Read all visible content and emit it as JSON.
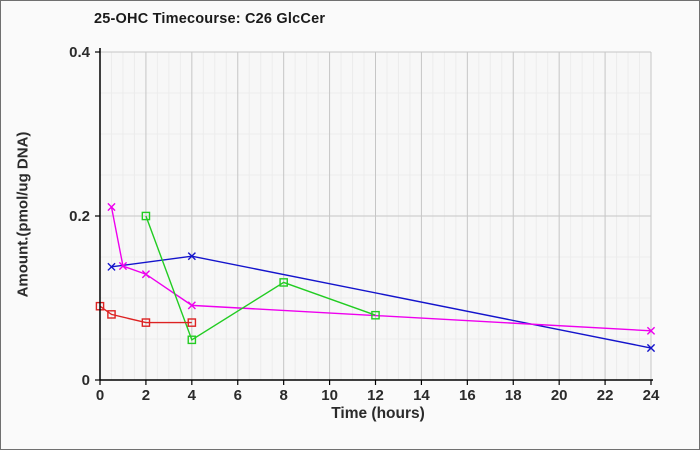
{
  "chart_data": {
    "type": "line",
    "title": "25-OHC Timecourse: C26 GlcCer",
    "xlabel": "Time (hours)",
    "ylabel": "Amount.(pmol/ug DNA)",
    "xlim": [
      0,
      24
    ],
    "ylim": [
      0,
      0.4
    ],
    "x_ticks": [
      {
        "v": 0,
        "label": "0"
      },
      {
        "v": 2,
        "label": "2"
      },
      {
        "v": 4,
        "label": "4"
      },
      {
        "v": 6,
        "label": "6"
      },
      {
        "v": 8,
        "label": "8"
      },
      {
        "v": 10,
        "label": "10"
      },
      {
        "v": 12,
        "label": "12"
      },
      {
        "v": 14,
        "label": "14"
      },
      {
        "v": 16,
        "label": "16"
      },
      {
        "v": 18,
        "label": "18"
      },
      {
        "v": 20,
        "label": "20"
      },
      {
        "v": 22,
        "label": "22"
      },
      {
        "v": 24,
        "label": "24"
      }
    ],
    "y_ticks": [
      {
        "v": 0,
        "label": "0"
      },
      {
        "v": 0.2,
        "label": "0.2"
      },
      {
        "v": 0.4,
        "label": "0.4"
      }
    ],
    "x_minor_step": 0.5,
    "y_minor_step": 0.05,
    "grid": true,
    "legend": "none",
    "colors": {
      "plot_bg": "#f7f7f7",
      "grid_minor": "#ececec",
      "grid_major": "#c6c6c6",
      "axis": "#000000",
      "tick_text": "#2b2b2b"
    },
    "series": [
      {
        "name": "series-blue-x",
        "color": "#1414cc",
        "marker": "x",
        "x": [
          0.5,
          4,
          24
        ],
        "y": [
          0.138,
          0.151,
          0.039
        ]
      },
      {
        "name": "series-magenta-x",
        "color": "#ee00ee",
        "marker": "x",
        "x": [
          0.5,
          1,
          2,
          4,
          24
        ],
        "y": [
          0.211,
          0.139,
          0.129,
          0.091,
          0.06
        ]
      },
      {
        "name": "series-green-square",
        "color": "#22cc22",
        "marker": "square",
        "x": [
          2,
          4,
          8,
          12
        ],
        "y": [
          0.2,
          0.049,
          0.119,
          0.079
        ]
      },
      {
        "name": "series-red-square",
        "color": "#dd2222",
        "marker": "square",
        "x": [
          0,
          0.5,
          2,
          4
        ],
        "y": [
          0.09,
          0.08,
          0.07,
          0.07
        ]
      }
    ]
  }
}
